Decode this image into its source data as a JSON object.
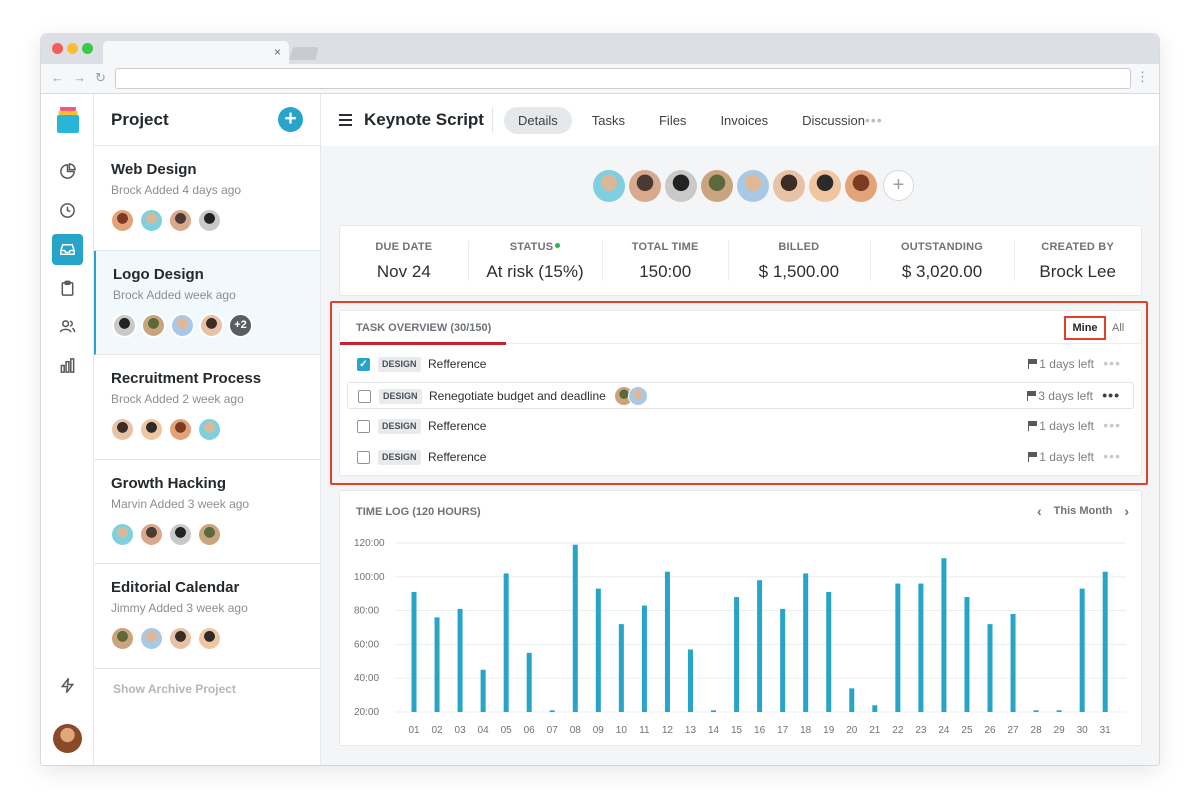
{
  "browser": {
    "tab_close": "×",
    "back": "←",
    "forward": "→",
    "reload": "↻",
    "menu": "⋮"
  },
  "rail": {
    "items": [
      {
        "icon": "pie-chart-icon"
      },
      {
        "icon": "clock-icon"
      },
      {
        "icon": "inbox-icon",
        "active": true
      },
      {
        "icon": "clipboard-icon"
      },
      {
        "icon": "users-icon"
      },
      {
        "icon": "bar-chart-icon"
      },
      {
        "icon": "lightning-icon"
      }
    ]
  },
  "projects": {
    "title": "Project",
    "add_label": "+",
    "items": [
      {
        "name": "Web Design",
        "sub": "Brock Added 4 days ago",
        "avatars": 4
      },
      {
        "name": "Logo Design",
        "sub": "Brock Added week ago",
        "avatars": 4,
        "more": "+2",
        "selected": true
      },
      {
        "name": "Recruitment Process",
        "sub": "Brock Added 2 week ago",
        "avatars": 4
      },
      {
        "name": "Growth Hacking",
        "sub": "Marvin Added 3 week ago",
        "avatars": 4
      },
      {
        "name": "Editorial Calendar",
        "sub": "Jimmy Added 3 week ago",
        "avatars": 4
      }
    ],
    "archive_label": "Show Archive Project"
  },
  "header": {
    "title": "Keynote Script",
    "tabs": [
      "Details",
      "Tasks",
      "Files",
      "Invoices",
      "Discussion"
    ],
    "active_tab": "Details",
    "more": "•••",
    "add_member": "+"
  },
  "stats": [
    {
      "label": "DUE DATE",
      "value": "Nov 24"
    },
    {
      "label": "STATUS",
      "value": "At risk (15%)",
      "indicator": "#2bb24c"
    },
    {
      "label": "TOTAL TIME",
      "value": "150:00"
    },
    {
      "label": "BILLED",
      "value": "$ 1,500.00"
    },
    {
      "label": "OUTSTANDING",
      "value": "$ 3,020.00"
    },
    {
      "label": "CREATED BY",
      "value": "Brock Lee"
    }
  ],
  "task_overview": {
    "title": "TASK OVERVIEW (30/150)",
    "filter_mine": "Mine",
    "filter_all": "All",
    "tasks": [
      {
        "tag": "DESIGN",
        "name": "Refference",
        "due": "1 days left",
        "checked": true
      },
      {
        "tag": "DESIGN",
        "name": "Renegotiate budget and deadline",
        "due": "3 days left",
        "checked": false,
        "hover": true
      },
      {
        "tag": "DESIGN",
        "name": "Refference",
        "due": "1 days left",
        "checked": false
      },
      {
        "tag": "DESIGN",
        "name": "Refference",
        "due": "1 days left",
        "checked": false
      }
    ],
    "more": "•••"
  },
  "time_log": {
    "title": "TIME LOG (120 HOURS)",
    "period": "This Month",
    "prev": "‹",
    "next": "›"
  },
  "colors": {
    "accent": "#27a4c7",
    "alert": "#e3402c",
    "bar": "#27a4c7"
  },
  "chart_data": {
    "type": "bar",
    "categories": [
      "01",
      "02",
      "03",
      "04",
      "05",
      "06",
      "07",
      "08",
      "09",
      "10",
      "11",
      "12",
      "13",
      "14",
      "15",
      "16",
      "17",
      "18",
      "19",
      "20",
      "21",
      "22",
      "23",
      "24",
      "25",
      "26",
      "27",
      "28",
      "29",
      "30",
      "31"
    ],
    "values": [
      91,
      76,
      81,
      45,
      102,
      55,
      21,
      119,
      93,
      72,
      83,
      103,
      57,
      21,
      88,
      98,
      81,
      102,
      91,
      34,
      24,
      96,
      96,
      111,
      88,
      72,
      78,
      21,
      21,
      93,
      103
    ],
    "ylim": [
      20,
      120
    ],
    "yticks": [
      "20:00",
      "40:00",
      "60:00",
      "80:00",
      "100:00",
      "120:00"
    ],
    "grid": true
  }
}
